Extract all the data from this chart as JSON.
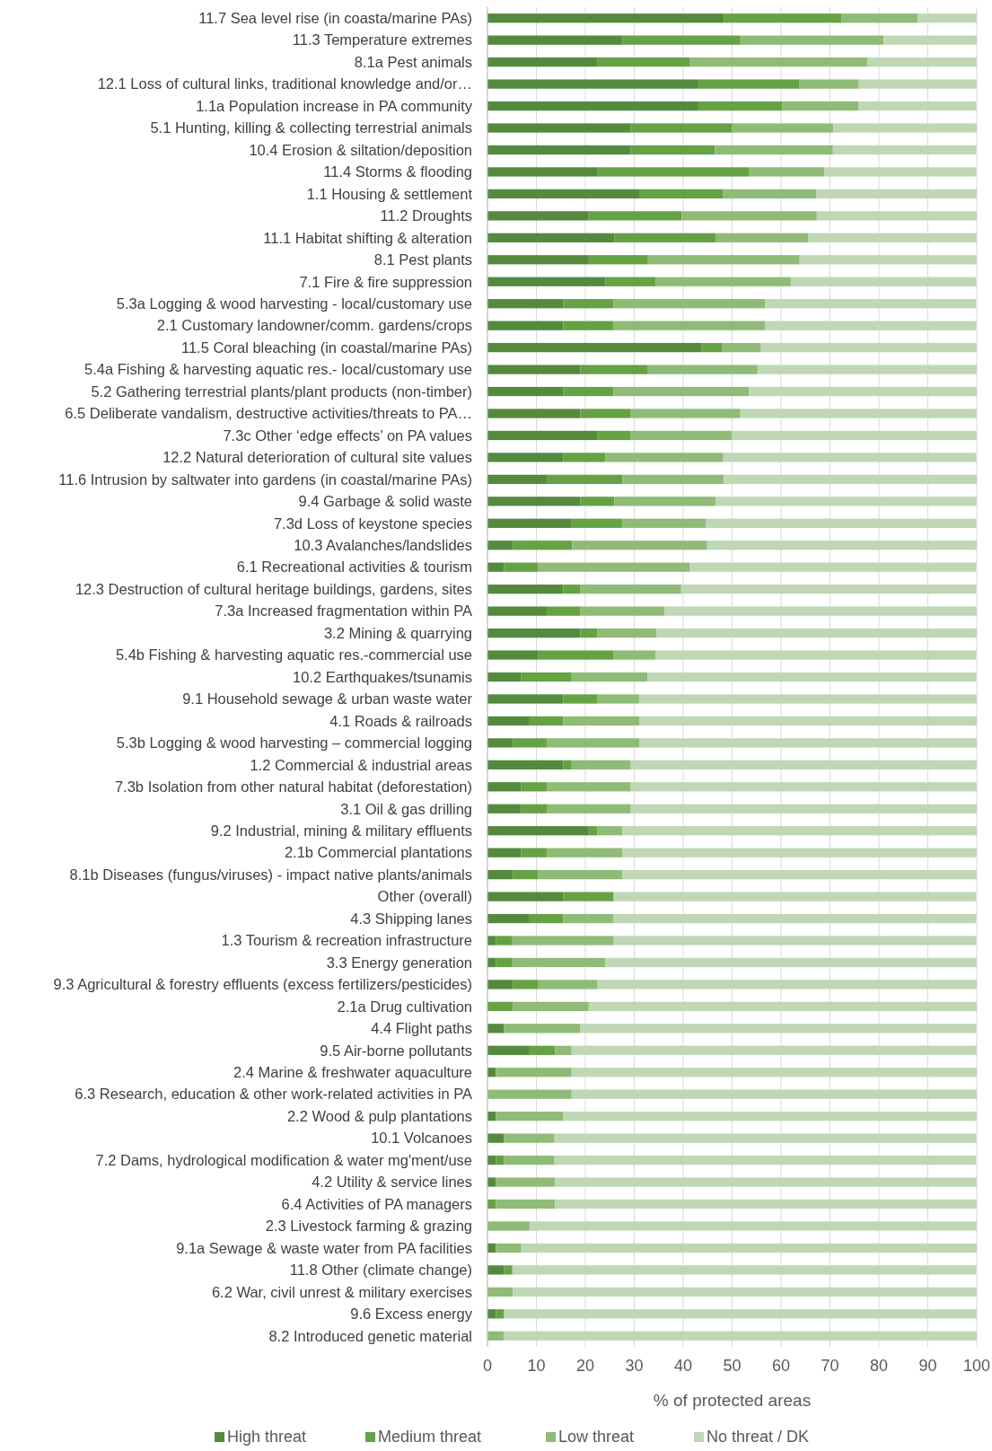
{
  "chart_data": {
    "type": "bar",
    "orientation": "horizontal",
    "stacked": true,
    "xlabel": "% of protected areas",
    "xlim": [
      0,
      100
    ],
    "xticks": [
      0,
      10,
      20,
      30,
      40,
      50,
      60,
      70,
      80,
      90,
      100
    ],
    "grid": "x",
    "legend": "bottom",
    "categories": [
      "11.7 Sea level rise (in coasta/marine PAs)",
      "11.3 Temperature extremes",
      "8.1a Pest animals",
      "12.1 Loss of cultural links, traditional knowledge and/or…",
      "1.1a Population increase in PA community",
      "5.1 Hunting, killing & collecting terrestrial animals",
      "10.4 Erosion & siltation/deposition",
      "11.4 Storms & flooding",
      "1.1 Housing & settlement",
      "11.2 Droughts",
      "11.1 Habitat shifting & alteration",
      "8.1 Pest plants",
      "7.1 Fire & fire suppression",
      "5.3a Logging & wood harvesting - local/customary use",
      "2.1 Customary landowner/comm. gardens/crops",
      "11.5 Coral bleaching (in coastal/marine PAs)",
      "5.4a Fishing & harvesting aquatic res.- local/customary use",
      "5.2 Gathering terrestrial plants/plant products (non-timber)",
      "6.5 Deliberate vandalism, destructive activities/threats to PA…",
      "7.3c Other ‘edge effects’ on PA values",
      "12.2 Natural deterioration of cultural site values",
      "11.6 Intrusion by saltwater into gardens (in coastal/marine PAs)",
      "9.4 Garbage & solid waste",
      "7.3d Loss of keystone species",
      "10.3 Avalanches/landslides",
      "6.1 Recreational activities & tourism",
      "12.3 Destruction of cultural heritage buildings, gardens, sites",
      "7.3a Increased fragmentation within PA",
      "3.2 Mining & quarrying",
      "5.4b Fishing & harvesting aquatic res.-commercial use",
      "10.2 Earthquakes/tsunamis",
      "9.1 Household sewage & urban waste water",
      "4.1 Roads & railroads",
      "5.3b Logging & wood harvesting – commercial logging",
      "1.2 Commercial & industrial areas",
      "7.3b Isolation from other natural habitat (deforestation)",
      "3.1 Oil & gas drilling",
      "9.2 Industrial, mining & military effluents",
      "2.1b Commercial plantations",
      "8.1b Diseases (fungus/viruses) - impact native plants/animals",
      "Other (overall)",
      "4.3 Shipping lanes",
      "1.3 Tourism & recreation infrastructure",
      "3.3 Energy generation",
      "9.3 Agricultural & forestry effluents (excess fertilizers/pesticides)",
      "2.1a Drug cultivation",
      "4.4 Flight paths",
      "9.5 Air-borne pollutants",
      "2.4 Marine & freshwater aquaculture",
      "6.3 Research, education & other work-related activities in PA",
      "2.2 Wood & pulp plantations",
      "10.1 Volcanoes",
      "7.2 Dams, hydrological modification & water mg'ment/use",
      "4.2 Utility & service lines",
      "6.4 Activities of PA managers",
      "2.3 Livestock farming & grazing",
      "9.1a Sewage & waste water from PA facilities",
      "11.8 Other (climate change)",
      "6.2 War, civil unrest & military exercises",
      "9.6 Excess energy",
      "8.2 Introduced genetic material"
    ],
    "series": [
      {
        "name": "High threat",
        "color": "#548a3e",
        "values": [
          48.3,
          27.6,
          22.4,
          43.1,
          43.1,
          29.3,
          29.3,
          22.4,
          31.0,
          20.7,
          25.9,
          20.7,
          24.1,
          15.5,
          15.5,
          43.8,
          19.0,
          15.5,
          19.0,
          22.4,
          15.5,
          12.1,
          19.0,
          17.2,
          5.2,
          3.4,
          15.5,
          12.1,
          19.0,
          10.3,
          6.9,
          15.5,
          8.6,
          5.2,
          15.5,
          6.9,
          6.9,
          20.7,
          6.9,
          5.2,
          15.5,
          8.6,
          1.7,
          1.7,
          5.2,
          0,
          3.4,
          8.6,
          1.7,
          0,
          1.7,
          3.4,
          1.7,
          1.7,
          0,
          0,
          1.7,
          3.4,
          0,
          1.7,
          0
        ]
      },
      {
        "name": "Medium threat",
        "color": "#65a243",
        "values": [
          24.1,
          24.1,
          19.0,
          20.7,
          17.2,
          20.7,
          17.2,
          31.0,
          17.2,
          19.0,
          20.7,
          12.1,
          10.3,
          10.3,
          10.3,
          4.1,
          13.8,
          10.3,
          10.3,
          6.9,
          8.6,
          15.5,
          6.9,
          10.3,
          12.1,
          6.9,
          3.4,
          6.9,
          3.4,
          15.5,
          10.3,
          6.9,
          6.9,
          6.9,
          1.7,
          5.2,
          5.2,
          1.7,
          5.2,
          5.2,
          10.3,
          6.9,
          3.4,
          3.4,
          5.2,
          5.2,
          0,
          5.2,
          0,
          0,
          0,
          0,
          1.7,
          0,
          1.7,
          0,
          0,
          1.7,
          0,
          1.7,
          0
        ]
      },
      {
        "name": "Low threat",
        "color": "#8fbb77",
        "values": [
          15.5,
          29.3,
          36.2,
          12.1,
          15.5,
          20.7,
          24.1,
          15.5,
          19.0,
          27.6,
          19.0,
          31.0,
          27.6,
          31.0,
          31.0,
          8.0,
          22.4,
          27.6,
          22.4,
          20.7,
          24.1,
          20.7,
          20.7,
          17.2,
          27.6,
          31.0,
          20.7,
          17.2,
          12.1,
          8.6,
          15.5,
          8.6,
          15.5,
          19.0,
          12.1,
          17.2,
          17.2,
          5.2,
          15.5,
          17.2,
          0,
          10.3,
          20.7,
          19.0,
          12.1,
          15.5,
          15.5,
          3.4,
          15.5,
          17.2,
          13.8,
          10.3,
          10.3,
          12.1,
          12.1,
          8.6,
          5.2,
          0,
          5.2,
          0,
          3.4
        ]
      },
      {
        "name": "No threat / DK",
        "color": "#bfd7b5",
        "values": [
          12.1,
          19.0,
          22.4,
          24.1,
          24.1,
          29.3,
          29.3,
          31.0,
          32.8,
          32.7,
          34.4,
          36.2,
          37.9,
          43.1,
          43.1,
          44.1,
          44.8,
          46.6,
          48.3,
          50.0,
          51.7,
          51.7,
          53.4,
          55.2,
          55.1,
          58.6,
          60.3,
          63.8,
          65.5,
          65.5,
          67.2,
          69.0,
          69.0,
          68.9,
          70.7,
          70.7,
          70.7,
          72.4,
          72.4,
          72.4,
          74.1,
          74.1,
          74.1,
          75.9,
          77.5,
          79.3,
          81.0,
          82.8,
          82.8,
          82.8,
          84.5,
          86.2,
          86.2,
          86.2,
          86.2,
          91.4,
          93.1,
          94.8,
          94.8,
          96.6,
          96.6
        ]
      }
    ]
  }
}
